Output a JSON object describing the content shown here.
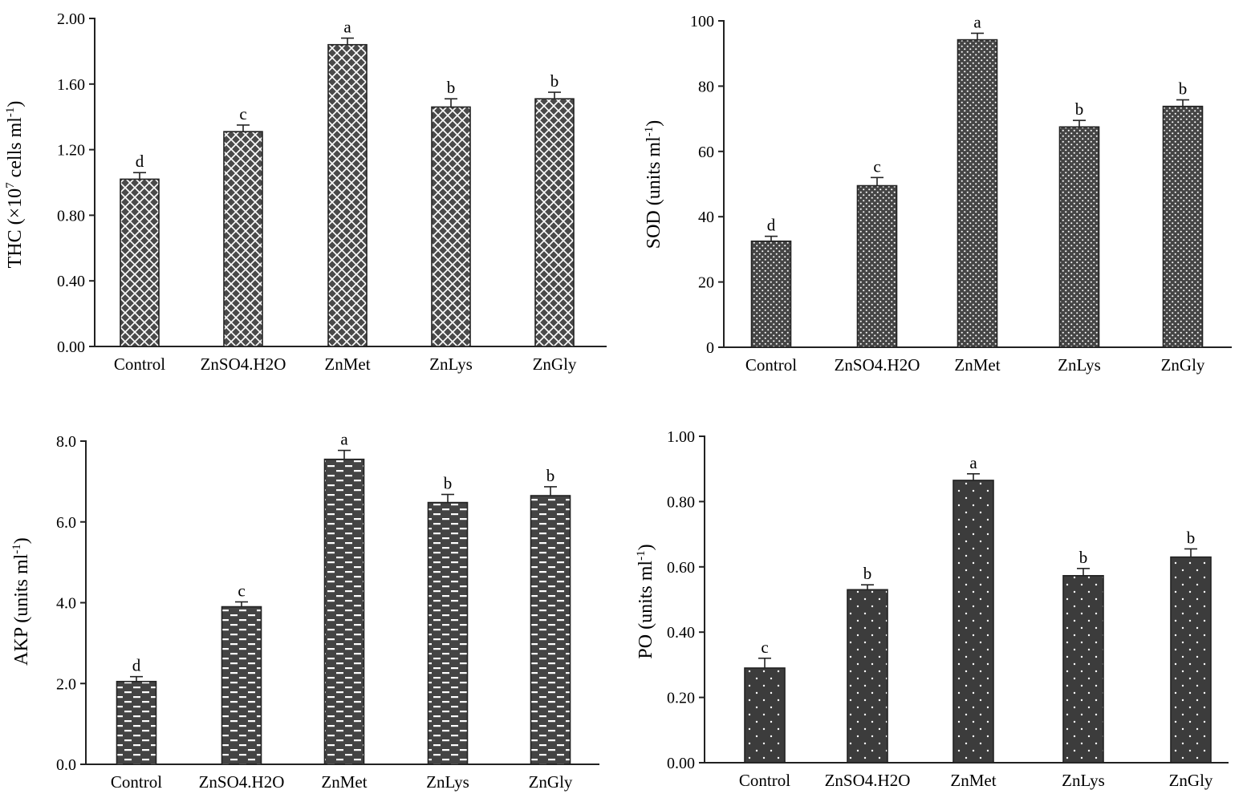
{
  "chart_data": [
    {
      "type": "bar",
      "ylabel_main": "THC (×10",
      "ylabel_sup1": "7",
      "ylabel_mid": " cells ml",
      "ylabel_sup2": "-1",
      "ylabel_end": ")",
      "categories": [
        "Control",
        "ZnSO4.H2O",
        "ZnMet",
        "ZnLys",
        "ZnGly"
      ],
      "values": [
        1.02,
        1.31,
        1.84,
        1.46,
        1.51
      ],
      "errors": [
        0.04,
        0.04,
        0.04,
        0.05,
        0.04
      ],
      "significance": [
        "d",
        "c",
        "a",
        "b",
        "b"
      ],
      "ylim": [
        0,
        2.0
      ],
      "yticks": [
        "0.00",
        "0.40",
        "0.80",
        "1.20",
        "1.60",
        "2.00"
      ],
      "pattern": "crosshatch",
      "grid": false
    },
    {
      "type": "bar",
      "ylabel_main": "SOD (units ml",
      "ylabel_sup1": "",
      "ylabel_mid": "",
      "ylabel_sup2": "-1",
      "ylabel_end": ")",
      "categories": [
        "Control",
        "ZnSO4.H2O",
        "ZnMet",
        "ZnLys",
        "ZnGly"
      ],
      "values": [
        32.5,
        49.5,
        94.2,
        67.5,
        73.8
      ],
      "errors": [
        1.5,
        2.5,
        2.0,
        2.0,
        2.0
      ],
      "significance": [
        "d",
        "c",
        "a",
        "b",
        "b"
      ],
      "ylim": [
        0,
        100
      ],
      "yticks": [
        "0",
        "20",
        "40",
        "60",
        "80",
        "100"
      ],
      "pattern": "dense-dots",
      "grid": false
    },
    {
      "type": "bar",
      "ylabel_main": "AKP (units ml",
      "ylabel_sup1": "",
      "ylabel_mid": "",
      "ylabel_sup2": "-1",
      "ylabel_end": ")",
      "categories": [
        "Control",
        "ZnSO4.H2O",
        "ZnMet",
        "ZnLys",
        "ZnGly"
      ],
      "values": [
        2.05,
        3.9,
        7.55,
        6.48,
        6.65
      ],
      "errors": [
        0.12,
        0.12,
        0.22,
        0.2,
        0.22
      ],
      "significance": [
        "d",
        "c",
        "a",
        "b",
        "b"
      ],
      "ylim": [
        0,
        8.0
      ],
      "yticks": [
        "0.0",
        "2.0",
        "4.0",
        "6.0",
        "8.0"
      ],
      "pattern": "dashes",
      "grid": false
    },
    {
      "type": "bar",
      "ylabel_main": "PO (units ml",
      "ylabel_sup1": "",
      "ylabel_mid": "",
      "ylabel_sup2": "-1",
      "ylabel_end": ")",
      "categories": [
        "Control",
        "ZnSO4.H2O",
        "ZnMet",
        "ZnLys",
        "ZnGly"
      ],
      "values": [
        0.29,
        0.53,
        0.865,
        0.573,
        0.63
      ],
      "errors": [
        0.03,
        0.015,
        0.02,
        0.022,
        0.025
      ],
      "significance": [
        "c",
        "b",
        "a",
        "b",
        "b"
      ],
      "ylim": [
        0,
        1.0
      ],
      "yticks": [
        "0.00",
        "0.20",
        "0.40",
        "0.60",
        "0.80",
        "1.00"
      ],
      "pattern": "sparse-dots",
      "grid": false
    }
  ]
}
